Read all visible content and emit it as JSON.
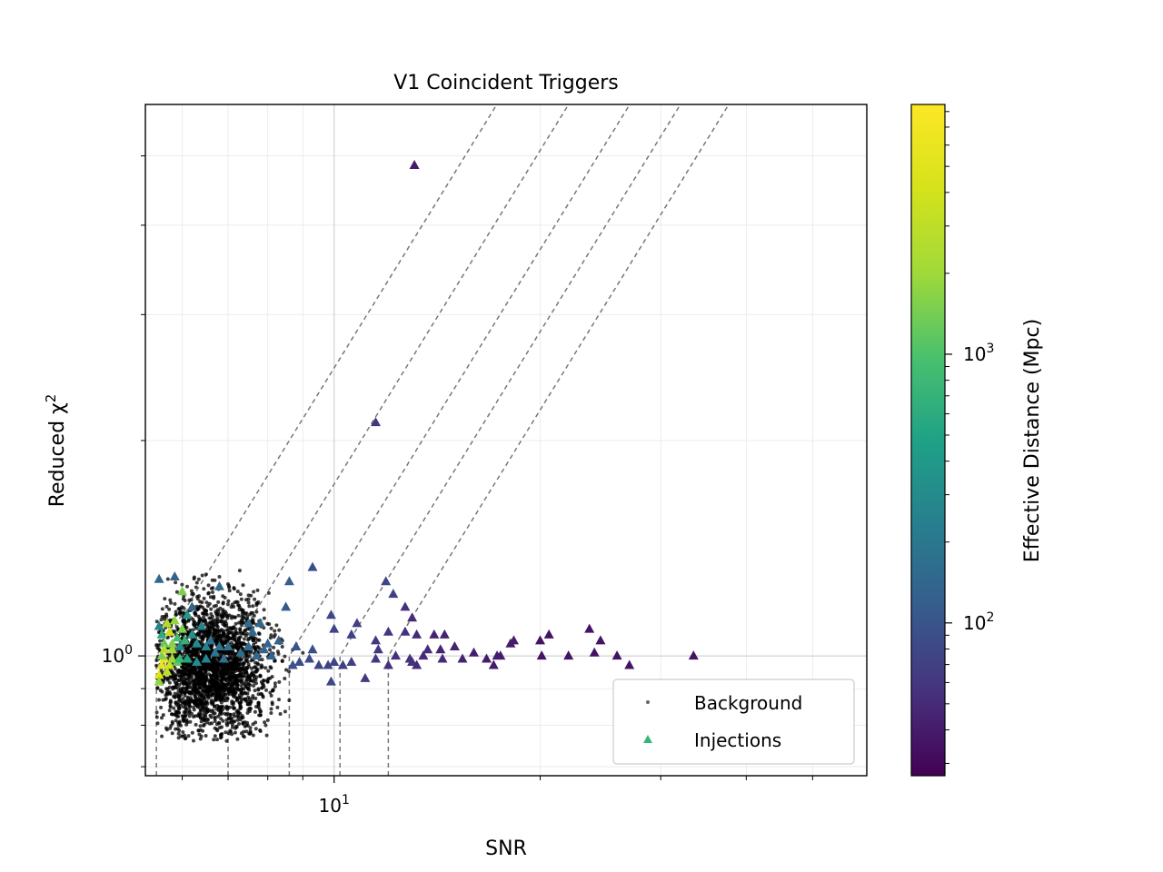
{
  "chart_data": {
    "type": "scatter",
    "title": "V1 Coincident Triggers",
    "xlabel": "SNR",
    "ylabel": "Reduced χ",
    "ylabel_superscript": "2",
    "x_scale": "log",
    "y_scale": "log",
    "xlim": [
      5.3,
      60
    ],
    "ylim": [
      0.68,
      5.9
    ],
    "grid": true,
    "legend_placement": "lower-right",
    "x_tick_labels": [
      {
        "value": 10,
        "base": "10",
        "exp": "1"
      }
    ],
    "y_tick_labels": [
      {
        "value": 1,
        "base": "10",
        "exp": "0"
      }
    ],
    "colorbar": {
      "label": "Effective Distance (Mpc)",
      "scale": "log",
      "range": [
        27,
        8500
      ],
      "colormap": "viridis",
      "tick_labels": [
        {
          "value": 100,
          "base": "10",
          "exp": "2"
        },
        {
          "value": 1000,
          "base": "10",
          "exp": "3"
        }
      ]
    },
    "series": [
      {
        "name": "Background",
        "marker": "circle",
        "color": "#000000",
        "approx_region": {
          "snr": [
            5.5,
            8.5
          ],
          "chisq_center": 0.97
        },
        "outliers": [
          [
            7.2,
            1.19
          ],
          [
            7.5,
            1.2
          ],
          [
            7.8,
            1.12
          ],
          [
            8.2,
            1.07
          ],
          [
            8.4,
            1.03
          ],
          [
            8.7,
            1.02
          ],
          [
            9.0,
            1.01
          ],
          [
            8.9,
            0.98
          ],
          [
            7.9,
            1.16
          ],
          [
            8.0,
            0.92
          ],
          [
            7.0,
            1.26
          ],
          [
            6.8,
            1.29
          ],
          [
            6.5,
            1.3
          ],
          [
            6.2,
            1.22
          ],
          [
            6.1,
            1.25
          ],
          [
            7.3,
            1.22
          ],
          [
            7.1,
            1.18
          ]
        ]
      },
      {
        "name": "Injections",
        "marker": "triangle",
        "color": "#35b779",
        "points": [
          [
            13.1,
            4.85,
            40
          ],
          [
            11.5,
            2.12,
            60
          ],
          [
            9.3,
            1.33,
            90
          ],
          [
            11.9,
            1.27,
            80
          ],
          [
            8.6,
            1.27,
            120
          ],
          [
            12.2,
            1.22,
            70
          ],
          [
            8.5,
            1.17,
            110
          ],
          [
            12.7,
            1.17,
            55
          ],
          [
            13.0,
            1.13,
            50
          ],
          [
            9.9,
            1.14,
            80
          ],
          [
            7.5,
            1.11,
            160
          ],
          [
            10.8,
            1.11,
            70
          ],
          [
            10.0,
            1.09,
            75
          ],
          [
            10.6,
            1.07,
            70
          ],
          [
            11.5,
            1.05,
            60
          ],
          [
            12.0,
            1.08,
            60
          ],
          [
            12.7,
            1.08,
            55
          ],
          [
            13.2,
            1.07,
            50
          ],
          [
            14.0,
            1.07,
            45
          ],
          [
            14.5,
            1.07,
            45
          ],
          [
            20.6,
            1.07,
            35
          ],
          [
            20.0,
            1.05,
            35
          ],
          [
            18.3,
            1.05,
            40
          ],
          [
            18.1,
            1.04,
            40
          ],
          [
            24.5,
            1.05,
            35
          ],
          [
            23.6,
            1.09,
            35
          ],
          [
            15.0,
            1.03,
            45
          ],
          [
            16.0,
            1.01,
            40
          ],
          [
            17.3,
            1.0,
            40
          ],
          [
            20.1,
            1.0,
            35
          ],
          [
            22.0,
            1.0,
            35
          ],
          [
            24.0,
            1.01,
            35
          ],
          [
            25.9,
            1.0,
            35
          ],
          [
            33.5,
            1.0,
            35
          ],
          [
            27.0,
            0.97,
            35
          ],
          [
            17.1,
            0.97,
            40
          ],
          [
            11.6,
            1.02,
            60
          ],
          [
            11.5,
            0.99,
            60
          ],
          [
            12.3,
            1.0,
            55
          ],
          [
            12.9,
            0.99,
            55
          ],
          [
            13.5,
            1.0,
            50
          ],
          [
            13.7,
            1.02,
            50
          ],
          [
            14.3,
            1.02,
            45
          ],
          [
            13.2,
            0.97,
            50
          ],
          [
            12.0,
            0.97,
            55
          ],
          [
            10.6,
            0.98,
            70
          ],
          [
            10.3,
            0.97,
            70
          ],
          [
            10.0,
            0.98,
            75
          ],
          [
            9.8,
            0.97,
            75
          ],
          [
            9.5,
            0.97,
            80
          ],
          [
            9.2,
            0.99,
            85
          ],
          [
            8.9,
            0.98,
            90
          ],
          [
            8.7,
            0.97,
            95
          ],
          [
            9.9,
            0.92,
            80
          ],
          [
            11.1,
            0.93,
            65
          ],
          [
            13.0,
            0.98,
            55
          ],
          [
            14.4,
            0.99,
            50
          ],
          [
            15.4,
            0.99,
            45
          ],
          [
            16.7,
            0.99,
            40
          ],
          [
            17.5,
            1.0,
            40
          ],
          [
            5.55,
            1.28,
            150
          ],
          [
            5.85,
            1.29,
            130
          ],
          [
            6.8,
            1.25,
            150
          ],
          [
            6.2,
            1.17,
            140
          ],
          [
            6.0,
            1.23,
            1500
          ],
          [
            7.8,
            1.11,
            150
          ],
          [
            7.6,
            1.08,
            150
          ],
          [
            8.0,
            1.04,
            130
          ],
          [
            8.3,
            1.05,
            120
          ],
          [
            8.8,
            1.03,
            100
          ],
          [
            9.3,
            1.02,
            90
          ],
          [
            7.9,
            1.02,
            130
          ],
          [
            8.1,
            1.0,
            130
          ],
          [
            7.5,
            1.03,
            150
          ],
          [
            7.7,
            1.0,
            150
          ],
          [
            7.3,
            1.01,
            160
          ],
          [
            7.0,
            1.03,
            170
          ],
          [
            6.8,
            1.03,
            180
          ],
          [
            6.6,
            1.05,
            170
          ],
          [
            6.9,
            0.99,
            170
          ],
          [
            5.55,
            1.1,
            250
          ],
          [
            5.6,
            1.07,
            600
          ],
          [
            5.65,
            1.04,
            1200
          ],
          [
            5.7,
            1.11,
            2500
          ],
          [
            5.75,
            1.08,
            3500
          ],
          [
            5.8,
            1.02,
            2200
          ],
          [
            5.85,
            1.12,
            1800
          ],
          [
            5.9,
            1.06,
            900
          ],
          [
            5.95,
            1.03,
            300
          ],
          [
            6.0,
            1.09,
            1500
          ],
          [
            6.05,
            1.05,
            700
          ],
          [
            6.1,
            1.14,
            400
          ],
          [
            6.2,
            1.07,
            350
          ],
          [
            6.3,
            1.04,
            300
          ],
          [
            6.4,
            1.1,
            250
          ],
          [
            6.5,
            1.03,
            250
          ],
          [
            5.55,
            0.94,
            5000
          ],
          [
            5.6,
            0.97,
            5500
          ],
          [
            5.65,
            0.99,
            6500
          ],
          [
            5.7,
            0.95,
            3000
          ],
          [
            5.75,
            0.97,
            4000
          ],
          [
            5.8,
            0.99,
            2000
          ],
          [
            5.6,
            1.0,
            1500
          ],
          [
            5.9,
            0.98,
            1200
          ],
          [
            5.55,
            0.92,
            1800
          ],
          [
            5.65,
            1.02,
            2800
          ],
          [
            5.8,
            1.04,
            1600
          ],
          [
            5.95,
            0.99,
            800
          ],
          [
            6.1,
            0.99,
            500
          ],
          [
            6.3,
            0.98,
            300
          ],
          [
            6.5,
            0.99,
            250
          ],
          [
            6.7,
            1.01,
            200
          ]
        ]
      }
    ]
  }
}
